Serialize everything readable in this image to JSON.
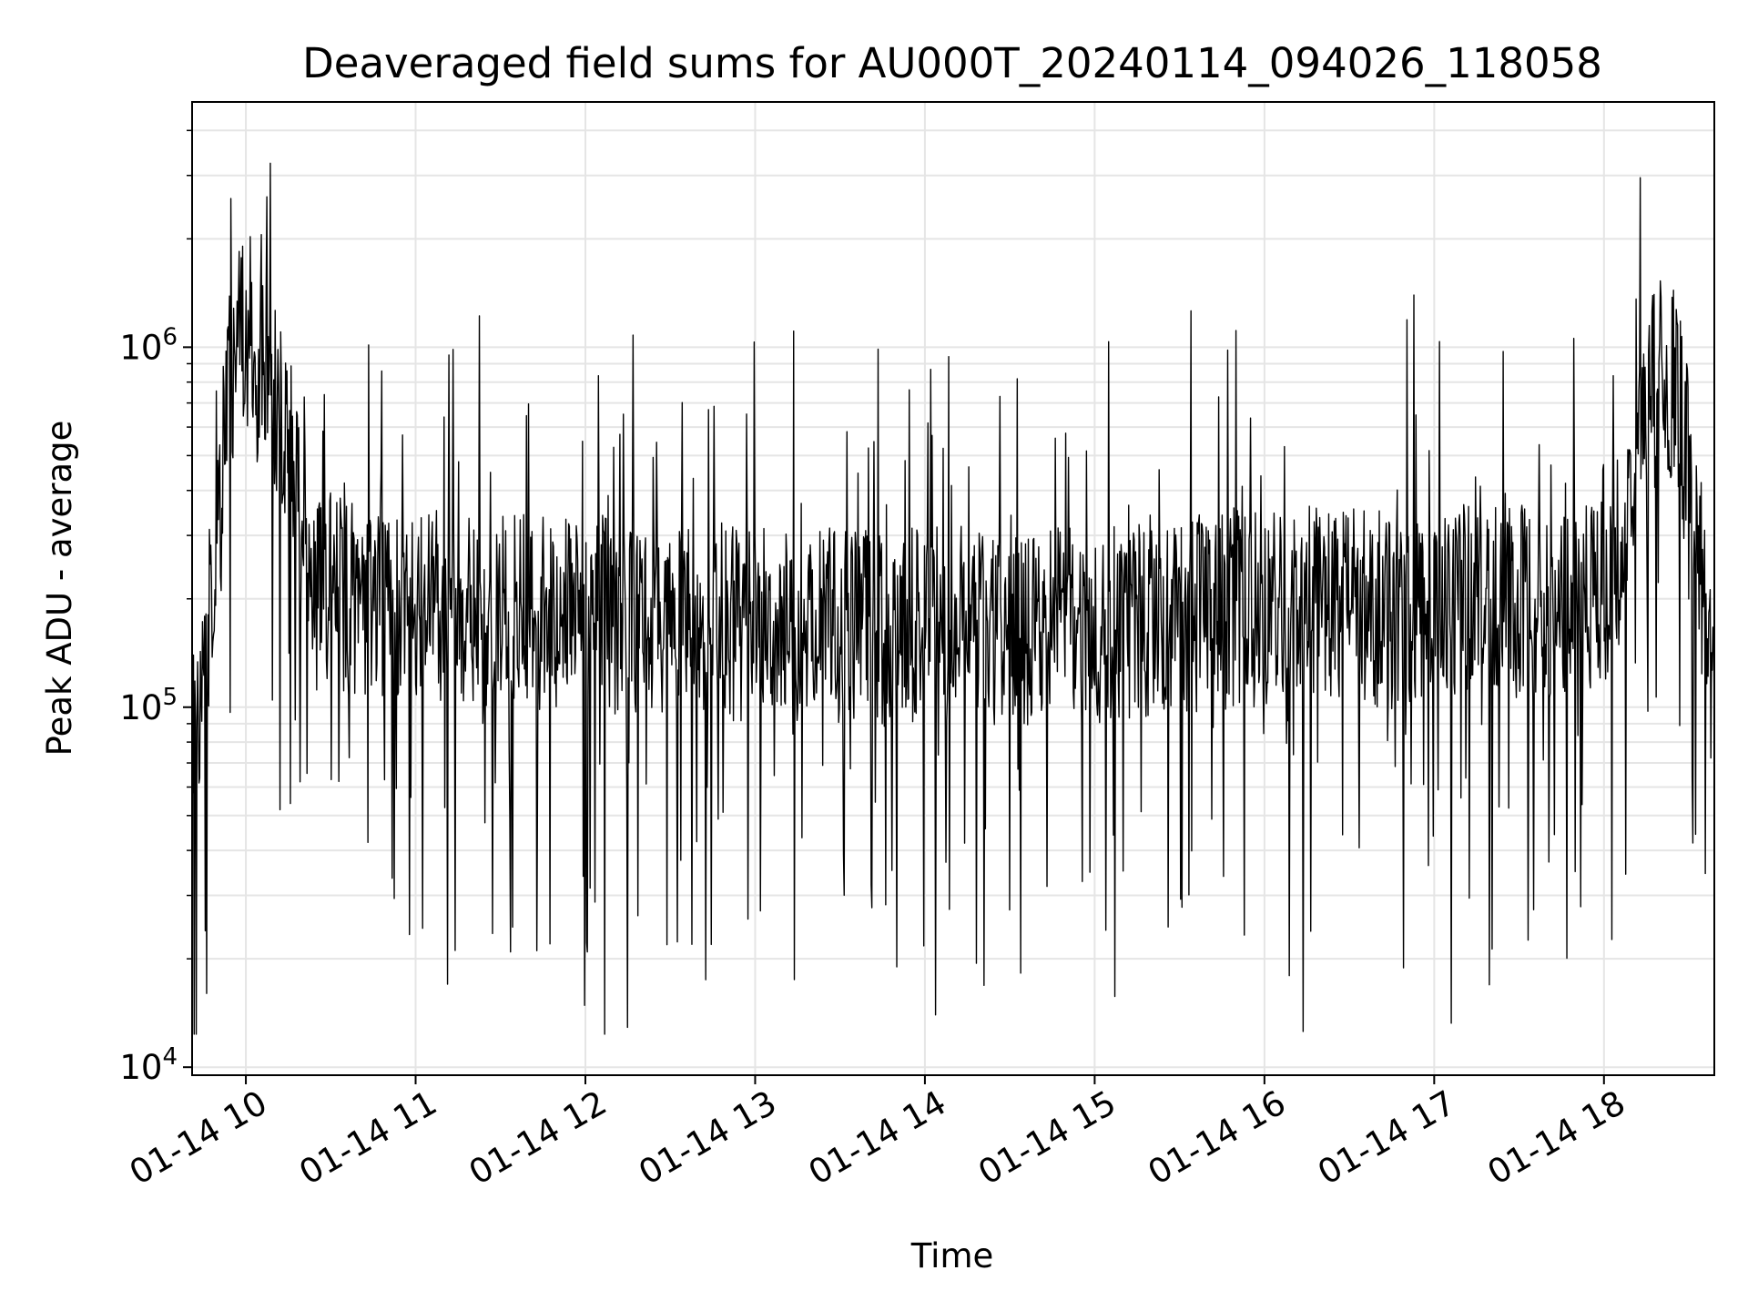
{
  "chart_data": {
    "type": "line",
    "title": "Deaveraged field sums for AU000T_20240114_094026_118058",
    "xlabel": "Time",
    "ylabel": "Peak ADU - average",
    "y_scale": "log",
    "ylim": [
      9500,
      4800000
    ],
    "xlim": [
      "2024-01-14 09:41",
      "2024-01-14 18:39"
    ],
    "grid": true,
    "line_color": "#000000",
    "grid_color": "#e5e5e5",
    "x_ticks": [
      {
        "time": "2024-01-14 10:00",
        "label": "01-14 10"
      },
      {
        "time": "2024-01-14 11:00",
        "label": "01-14 11"
      },
      {
        "time": "2024-01-14 12:00",
        "label": "01-14 12"
      },
      {
        "time": "2024-01-14 13:00",
        "label": "01-14 13"
      },
      {
        "time": "2024-01-14 14:00",
        "label": "01-14 14"
      },
      {
        "time": "2024-01-14 15:00",
        "label": "01-14 15"
      },
      {
        "time": "2024-01-14 16:00",
        "label": "01-14 16"
      },
      {
        "time": "2024-01-14 17:00",
        "label": "01-14 17"
      },
      {
        "time": "2024-01-14 18:00",
        "label": "01-14 18"
      }
    ],
    "y_ticks": [
      {
        "value": 10000,
        "base": "10",
        "exp": "4"
      },
      {
        "value": 100000,
        "base": "10",
        "exp": "5"
      },
      {
        "value": 1000000,
        "base": "10",
        "exp": "6"
      }
    ],
    "series": [
      {
        "x": [
          "2024-01-14 09:41",
          "2024-01-14 09:45",
          "2024-01-14 09:50",
          "2024-01-14 09:55",
          "2024-01-14 10:00",
          "2024-01-14 10:05",
          "2024-01-14 10:10",
          "2024-01-14 10:15",
          "2024-01-14 10:20",
          "2024-01-14 10:25",
          "2024-01-14 10:30",
          "2024-01-14 10:40",
          "2024-01-14 10:50",
          "2024-01-14 11:00",
          "2024-01-14 11:10",
          "2024-01-14 11:20",
          "2024-01-14 11:30",
          "2024-01-14 11:45",
          "2024-01-14 12:00",
          "2024-01-14 12:15",
          "2024-01-14 12:30",
          "2024-01-14 12:45",
          "2024-01-14 13:00",
          "2024-01-14 13:15",
          "2024-01-14 13:30",
          "2024-01-14 13:45",
          "2024-01-14 14:00",
          "2024-01-14 14:15",
          "2024-01-14 14:30",
          "2024-01-14 14:45",
          "2024-01-14 15:00",
          "2024-01-14 15:15",
          "2024-01-14 15:30",
          "2024-01-14 15:45",
          "2024-01-14 16:00",
          "2024-01-14 16:15",
          "2024-01-14 16:30",
          "2024-01-14 16:45",
          "2024-01-14 17:00",
          "2024-01-14 17:15",
          "2024-01-14 17:30",
          "2024-01-14 17:45",
          "2024-01-14 18:00",
          "2024-01-14 18:05",
          "2024-01-14 18:10",
          "2024-01-14 18:15",
          "2024-01-14 18:20",
          "2024-01-14 18:25",
          "2024-01-14 18:30",
          "2024-01-14 18:35",
          "2024-01-14 18:39"
        ],
        "y": [
          90000,
          130000,
          260000,
          900000,
          1100000,
          850000,
          700000,
          550000,
          300000,
          240000,
          210000,
          200000,
          190000,
          200000,
          195000,
          185000,
          190000,
          180000,
          185000,
          175000,
          180000,
          175000,
          170000,
          165000,
          170000,
          165000,
          170000,
          175000,
          165000,
          170000,
          170000,
          175000,
          180000,
          185000,
          190000,
          195000,
          190000,
          185000,
          190000,
          200000,
          195000,
          190000,
          210000,
          280000,
          450000,
          800000,
          950000,
          750000,
          450000,
          220000,
          90000
        ]
      }
    ]
  }
}
